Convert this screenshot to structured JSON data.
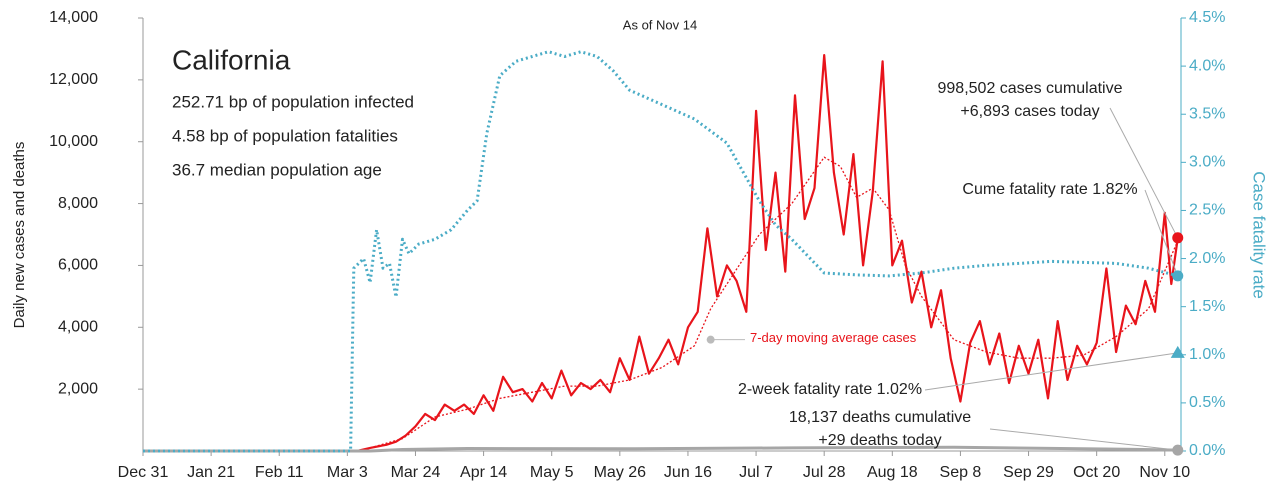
{
  "chart_data": {
    "type": "line",
    "title": "California",
    "subtitle": "As of Nov 14",
    "info_lines": [
      "252.71 bp of population infected",
      "4.58 bp of population fatalities",
      "36.7 median population age"
    ],
    "y_label": "Daily new cases and deaths",
    "y2_label": "Case fatality rate",
    "xlim": [
      0,
      320
    ],
    "xticks": [
      {
        "value": 0,
        "label": "Dec 31"
      },
      {
        "value": 21,
        "label": "Jan 21"
      },
      {
        "value": 42,
        "label": "Feb 11"
      },
      {
        "value": 63,
        "label": "Mar 3"
      },
      {
        "value": 84,
        "label": "Mar 24"
      },
      {
        "value": 105,
        "label": "Apr 14"
      },
      {
        "value": 126,
        "label": "May 5"
      },
      {
        "value": 147,
        "label": "May 26"
      },
      {
        "value": 168,
        "label": "Jun 16"
      },
      {
        "value": 189,
        "label": "Jul 7"
      },
      {
        "value": 210,
        "label": "Jul 28"
      },
      {
        "value": 231,
        "label": "Aug 18"
      },
      {
        "value": 252,
        "label": "Sep 8"
      },
      {
        "value": 273,
        "label": "Sep 29"
      },
      {
        "value": 294,
        "label": "Oct 20"
      },
      {
        "value": 315,
        "label": "Nov 10"
      }
    ],
    "ylim": [
      0,
      14000
    ],
    "yticks": [
      {
        "value": 2000,
        "label": "2,000"
      },
      {
        "value": 4000,
        "label": "4,000"
      },
      {
        "value": 6000,
        "label": "6,000"
      },
      {
        "value": 8000,
        "label": "8,000"
      },
      {
        "value": 10000,
        "label": "10,000"
      },
      {
        "value": 12000,
        "label": "12,000"
      },
      {
        "value": 14000,
        "label": "14,000"
      }
    ],
    "y2lim": [
      0,
      4.5
    ],
    "y2ticks": [
      {
        "value": 0,
        "label": "0.0%"
      },
      {
        "value": 0.5,
        "label": "0.5%"
      },
      {
        "value": 1,
        "label": "1.0%"
      },
      {
        "value": 1.5,
        "label": "1.5%"
      },
      {
        "value": 2,
        "label": "2.0%"
      },
      {
        "value": 2.5,
        "label": "2.5%"
      },
      {
        "value": 3,
        "label": "3.0%"
      },
      {
        "value": 3.5,
        "label": "3.5%"
      },
      {
        "value": 4,
        "label": "4.0%"
      },
      {
        "value": 4.5,
        "label": "4.5%"
      }
    ],
    "series": [
      {
        "name": "Daily new cases",
        "color": "#e8141b",
        "line_style": "solid",
        "x": [
          0,
          63,
          66,
          70,
          75,
          78,
          81,
          84,
          87,
          90,
          93,
          96,
          99,
          102,
          105,
          108,
          111,
          114,
          117,
          120,
          123,
          126,
          129,
          132,
          135,
          138,
          141,
          144,
          147,
          150,
          153,
          156,
          159,
          162,
          165,
          168,
          171,
          174,
          177,
          180,
          183,
          186,
          189,
          192,
          195,
          198,
          201,
          204,
          207,
          210,
          213,
          216,
          219,
          222,
          225,
          228,
          231,
          234,
          237,
          240,
          243,
          246,
          249,
          252,
          255,
          258,
          261,
          264,
          267,
          270,
          273,
          276,
          279,
          282,
          285,
          288,
          291,
          294,
          297,
          300,
          303,
          306,
          309,
          312,
          315,
          317,
          319
        ],
        "values": [
          0,
          0,
          0,
          100,
          200,
          300,
          500,
          800,
          1200,
          1000,
          1500,
          1300,
          1500,
          1200,
          1800,
          1300,
          2400,
          1900,
          2000,
          1600,
          2200,
          1700,
          2600,
          1800,
          2200,
          2000,
          2300,
          1900,
          3000,
          2300,
          3700,
          2500,
          3000,
          3600,
          2800,
          4000,
          4500,
          7200,
          5000,
          6000,
          5500,
          4500,
          11000,
          6500,
          9000,
          5800,
          11500,
          7500,
          8500,
          12800,
          9000,
          7000,
          9600,
          6000,
          8400,
          12600,
          6000,
          6800,
          4800,
          5800,
          4000,
          5200,
          3000,
          1600,
          3500,
          4200,
          2800,
          3800,
          2200,
          3400,
          2500,
          3600,
          1700,
          4200,
          2300,
          3400,
          2800,
          3500,
          5900,
          3200,
          4700,
          4100,
          5500,
          4500,
          7700,
          5400,
          6893
        ]
      },
      {
        "name": "7-day moving average cases",
        "color": "#e8141b",
        "line_style": "dotted",
        "x": [
          70,
          80,
          90,
          100,
          110,
          120,
          130,
          140,
          150,
          160,
          170,
          175,
          180,
          190,
          200,
          210,
          215,
          220,
          225,
          230,
          235,
          240,
          250,
          260,
          270,
          280,
          290,
          300,
          310,
          319
        ],
        "values": [
          100,
          400,
          1100,
          1350,
          1700,
          1900,
          2100,
          2100,
          2300,
          2700,
          3400,
          4600,
          5400,
          7000,
          8000,
          9500,
          9200,
          8200,
          8500,
          7800,
          6000,
          5000,
          3600,
          3200,
          3000,
          3000,
          3100,
          3700,
          4600,
          6800
        ]
      },
      {
        "name": "Daily deaths",
        "color": "#a6a6a6",
        "line_style": "solid",
        "x": [
          0,
          70,
          80,
          100,
          150,
          200,
          250,
          300,
          319
        ],
        "values": [
          0,
          0,
          50,
          80,
          70,
          100,
          120,
          60,
          29
        ]
      },
      {
        "name": "Case fatality rate",
        "color": "#4bacc6",
        "line_style": "dotted",
        "axis": "y2",
        "x": [
          0,
          64,
          65,
          68,
          70,
          72,
          74,
          76,
          78,
          80,
          82,
          85,
          90,
          95,
          100,
          103,
          106,
          110,
          115,
          120,
          125,
          130,
          135,
          140,
          145,
          150,
          160,
          170,
          180,
          185,
          190,
          195,
          200,
          210,
          220,
          230,
          240,
          250,
          260,
          270,
          280,
          290,
          300,
          310,
          319
        ],
        "values": [
          0,
          0,
          1.9,
          2.0,
          1.75,
          2.3,
          1.9,
          1.95,
          1.6,
          2.2,
          2.05,
          2.15,
          2.2,
          2.3,
          2.5,
          2.6,
          3.3,
          3.9,
          4.05,
          4.1,
          4.15,
          4.1,
          4.15,
          4.1,
          3.95,
          3.75,
          3.6,
          3.45,
          3.2,
          2.9,
          2.6,
          2.35,
          2.2,
          1.85,
          1.83,
          1.82,
          1.85,
          1.9,
          1.93,
          1.95,
          1.97,
          1.96,
          1.95,
          1.9,
          1.82
        ]
      }
    ],
    "annotations": [
      {
        "lines": [
          "998,502 cases cumulative",
          "+6,893 cases today"
        ],
        "x": 319,
        "y": 6893,
        "marker": "circle",
        "color": "#e8141b"
      },
      {
        "lines": [
          "Cume fatality rate 1.82%"
        ],
        "x": 319,
        "y": 1.82,
        "axis": "y2",
        "marker": "circle",
        "color": "#4bacc6"
      },
      {
        "lines": [
          "2-week fatality rate 1.02%"
        ],
        "x": 319,
        "y": 1.02,
        "axis": "y2",
        "marker": "triangle",
        "color": "#4bacc6"
      },
      {
        "lines": [
          "18,137 deaths cumulative",
          "+29 deaths today"
        ],
        "x": 319,
        "y": 29,
        "marker": "circle",
        "color": "#a6a6a6"
      }
    ]
  }
}
